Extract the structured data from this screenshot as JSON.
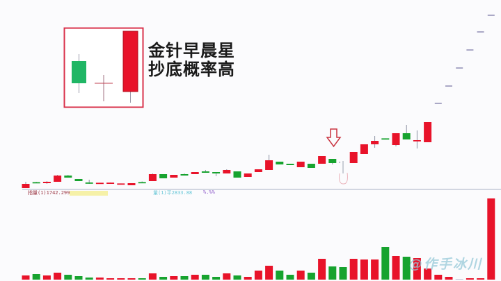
{
  "chart_data": {
    "type": "candlestick",
    "title": "",
    "colors": {
      "up": "#e8132a",
      "down": "#17a32f",
      "flat_tail": "#8f8cb3",
      "doji": "#9aa0b0",
      "box": "#d9314a",
      "arrow": "#c9323f"
    },
    "candles": [
      {
        "o": 4,
        "c": 10,
        "h": 13,
        "l": 4
      },
      {
        "o": 12.5,
        "c": 12,
        "h": 13,
        "l": 12
      },
      {
        "o": 11,
        "c": 13,
        "h": 14,
        "l": 10
      },
      {
        "o": 13,
        "c": 22,
        "h": 23,
        "l": 13
      },
      {
        "o": 22,
        "c": 19,
        "h": 23,
        "l": 19
      },
      {
        "o": 17,
        "c": 14,
        "h": 17,
        "l": 14
      },
      {
        "o": 12,
        "c": 11,
        "h": 16,
        "l": 10
      },
      {
        "o": 11,
        "c": 11.6,
        "h": 11.6,
        "l": 11
      },
      {
        "o": 11,
        "c": 11.8,
        "h": 12,
        "l": 11
      },
      {
        "o": 10,
        "c": 10.6,
        "h": 10.6,
        "l": 10
      },
      {
        "o": 8,
        "c": 11,
        "h": 11,
        "l": 8
      },
      {
        "o": 12.6,
        "c": 12,
        "h": 13.5,
        "l": 12
      },
      {
        "o": 14,
        "c": 24,
        "h": 25,
        "l": 14
      },
      {
        "o": 24,
        "c": 18,
        "h": 24,
        "l": 18
      },
      {
        "o": 19,
        "c": 23,
        "h": 23,
        "l": 19
      },
      {
        "o": 24,
        "c": 22,
        "h": 25,
        "l": 22
      },
      {
        "o": 24,
        "c": 27,
        "h": 27,
        "l": 24
      },
      {
        "o": 28,
        "c": 26,
        "h": 30,
        "l": 26
      },
      {
        "o": 27,
        "c": 25,
        "h": 27,
        "l": 21
      },
      {
        "o": 25,
        "c": 30,
        "h": 31,
        "l": 25
      },
      {
        "o": 28,
        "c": 19,
        "h": 28,
        "l": 19
      },
      {
        "o": 20,
        "c": 25,
        "h": 25,
        "l": 20
      },
      {
        "o": 27,
        "c": 31,
        "h": 31,
        "l": 27
      },
      {
        "o": 30,
        "c": 44,
        "h": 52,
        "l": 30
      },
      {
        "o": 42,
        "c": 38,
        "h": 42,
        "l": 38
      },
      {
        "o": 39,
        "c": 37,
        "h": 39,
        "l": 37
      },
      {
        "o": 34,
        "c": 42,
        "h": 42,
        "l": 34
      },
      {
        "o": 39,
        "c": 33,
        "h": 39,
        "l": 33
      },
      {
        "o": 39,
        "c": 50,
        "h": 50,
        "l": 39
      },
      {
        "o": 46,
        "c": 40,
        "h": 46,
        "l": 38
      },
      {
        "o": 42,
        "c": 42,
        "h": 43,
        "l": 25,
        "kind": "doji"
      },
      {
        "o": 40,
        "c": 56,
        "h": 56,
        "l": 40
      },
      {
        "o": 53,
        "c": 67,
        "h": 67,
        "l": 53
      },
      {
        "o": 67,
        "c": 72,
        "h": 79,
        "l": 62
      },
      {
        "o": 75.6,
        "c": 75,
        "h": 75.6,
        "l": 75
      },
      {
        "o": 66,
        "c": 83,
        "h": 83,
        "l": 64
      },
      {
        "o": 83,
        "c": 74,
        "h": 95,
        "l": 74
      },
      {
        "o": 72,
        "c": 73,
        "h": 87,
        "l": 61
      },
      {
        "o": 70,
        "c": 99,
        "h": 99,
        "l": 70
      },
      {
        "o": 126,
        "c": 126,
        "h": 126,
        "l": 126,
        "kind": "tail"
      },
      {
        "o": 151,
        "c": 151,
        "h": 151,
        "l": 151,
        "kind": "tail"
      },
      {
        "o": 177,
        "c": 177,
        "h": 177,
        "l": 177,
        "kind": "tail"
      },
      {
        "o": 203,
        "c": 203,
        "h": 203,
        "l": 203,
        "kind": "tail"
      },
      {
        "o": 229,
        "c": 229,
        "h": 229,
        "l": 229,
        "kind": "tail"
      },
      {
        "o": 253,
        "c": 253,
        "h": 253,
        "l": 253,
        "kind": "tail"
      }
    ],
    "volume": [
      6,
      8,
      6,
      10,
      7,
      5,
      3,
      3,
      2,
      2,
      2,
      2,
      9,
      4,
      5,
      5,
      7,
      7,
      4,
      9,
      6,
      4,
      13,
      20,
      13,
      7,
      13,
      10,
      30,
      19,
      18,
      30,
      29,
      29,
      47,
      34,
      33,
      31,
      16,
      7,
      4,
      1,
      2,
      2,
      117
    ],
    "volume_dir": [
      "u",
      "d",
      "u",
      "u",
      "d",
      "d",
      "d",
      "u",
      "u",
      "u",
      "u",
      "d",
      "u",
      "d",
      "u",
      "d",
      "u",
      "d",
      "d",
      "u",
      "d",
      "u",
      "u",
      "u",
      "d",
      "d",
      "u",
      "d",
      "u",
      "d",
      "d",
      "u",
      "u",
      "u",
      "d",
      "u",
      "d",
      "u",
      "u",
      "u",
      "u",
      "f",
      "u",
      "u",
      "u"
    ],
    "indicators": [
      "指量(1)1742.299",
      "量(1)平2833.88",
      "%.%%"
    ]
  },
  "inset": {
    "line1": "金针早晨星",
    "line2": "抄底概率高"
  },
  "watermark": "@作手冰川"
}
